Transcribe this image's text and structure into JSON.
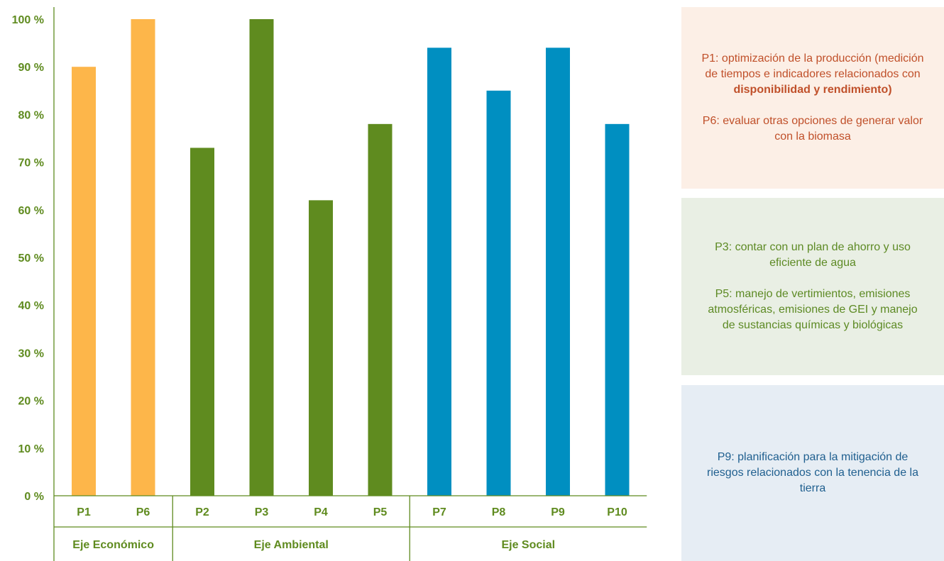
{
  "chart_data": {
    "type": "bar",
    "categories": [
      "P1",
      "P6",
      "P2",
      "P3",
      "P4",
      "P5",
      "P7",
      "P8",
      "P9",
      "P10"
    ],
    "values": [
      90,
      100,
      73,
      100,
      62,
      78,
      94,
      85,
      94,
      78
    ],
    "groups": [
      {
        "name": "Eje Económico",
        "categories": [
          "P1",
          "P6"
        ],
        "color": "#fdb64a"
      },
      {
        "name": "Eje Ambiental",
        "categories": [
          "P2",
          "P3",
          "P4",
          "P5"
        ],
        "color": "#5f8b1f"
      },
      {
        "name": "Eje Social",
        "categories": [
          "P7",
          "P8",
          "P9",
          "P10"
        ],
        "color": "#008fc1"
      }
    ],
    "ylim": [
      0,
      100
    ],
    "yticks": [
      "0 %",
      "10 %",
      "20 %",
      "30 %",
      "40 %",
      "50 %",
      "60 %",
      "70 %",
      "80 %",
      "90 %",
      "100 %"
    ],
    "axis_color": "#5f8b1f",
    "grid": false
  },
  "notes": {
    "economico": {
      "p1_prefix": "P1: optimización de la producción (medición de tiempos e indicadores relacionados con",
      "p1_bold": "disponibilidad y rendimiento)",
      "p6": "P6: evaluar otras opciones de generar valor con la biomasa"
    },
    "ambiental": {
      "p3": "P3: contar con un plan de ahorro y uso eficiente de agua",
      "p5": "P5: manejo de vertimientos, emisiones atmosféricas, emisiones de GEI y manejo de sustancias químicas y biológicas"
    },
    "social": {
      "p9": "P9: planificación para la mitigación de riesgos relacionados con la tenencia de la tierra"
    }
  }
}
